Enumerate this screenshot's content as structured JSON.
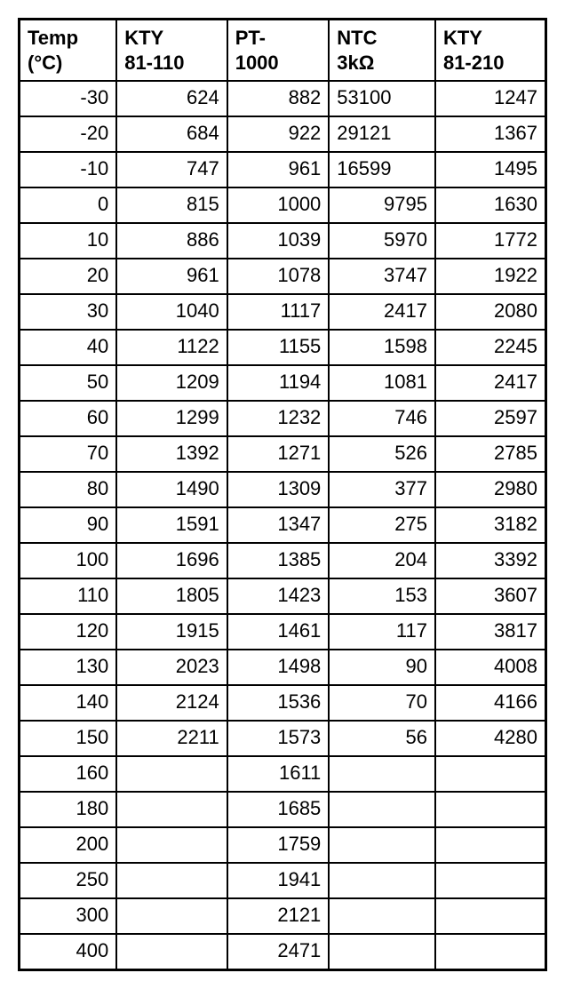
{
  "table": {
    "type": "table",
    "columns": [
      {
        "line1": "Temp",
        "line2": "(°C)"
      },
      {
        "line1": "KTY",
        "line2": "81-110"
      },
      {
        "line1": "PT-",
        "line2": "1000"
      },
      {
        "line1": "NTC",
        "line2": "3kΩ"
      },
      {
        "line1": "KTY",
        "line2": "81-210"
      }
    ],
    "rows": [
      {
        "temp": "-30",
        "kty110": "624",
        "pt1000": "882",
        "ntc": "53100",
        "ntc_align": "left",
        "kty210": "1247"
      },
      {
        "temp": "-20",
        "kty110": "684",
        "pt1000": "922",
        "ntc": "29121",
        "ntc_align": "left",
        "kty210": "1367"
      },
      {
        "temp": "-10",
        "kty110": "747",
        "pt1000": "961",
        "ntc": "16599",
        "ntc_align": "left",
        "kty210": "1495"
      },
      {
        "temp": "0",
        "kty110": "815",
        "pt1000": "1000",
        "ntc": "9795",
        "ntc_align": "right",
        "kty210": "1630"
      },
      {
        "temp": "10",
        "kty110": "886",
        "pt1000": "1039",
        "ntc": "5970",
        "ntc_align": "right",
        "kty210": "1772"
      },
      {
        "temp": "20",
        "kty110": "961",
        "pt1000": "1078",
        "ntc": "3747",
        "ntc_align": "right",
        "kty210": "1922"
      },
      {
        "temp": "30",
        "kty110": "1040",
        "pt1000": "1117",
        "ntc": "2417",
        "ntc_align": "right",
        "kty210": "2080"
      },
      {
        "temp": "40",
        "kty110": "1122",
        "pt1000": "1155",
        "ntc": "1598",
        "ntc_align": "right",
        "kty210": "2245"
      },
      {
        "temp": "50",
        "kty110": "1209",
        "pt1000": "1194",
        "ntc": "1081",
        "ntc_align": "right",
        "kty210": "2417"
      },
      {
        "temp": "60",
        "kty110": "1299",
        "pt1000": "1232",
        "ntc": "746",
        "ntc_align": "right",
        "kty210": "2597"
      },
      {
        "temp": "70",
        "kty110": "1392",
        "pt1000": "1271",
        "ntc": "526",
        "ntc_align": "right",
        "kty210": "2785"
      },
      {
        "temp": "80",
        "kty110": "1490",
        "pt1000": "1309",
        "ntc": "377",
        "ntc_align": "right",
        "kty210": "2980"
      },
      {
        "temp": "90",
        "kty110": "1591",
        "pt1000": "1347",
        "ntc": "275",
        "ntc_align": "right",
        "kty210": "3182"
      },
      {
        "temp": "100",
        "kty110": "1696",
        "pt1000": "1385",
        "ntc": "204",
        "ntc_align": "right",
        "kty210": "3392"
      },
      {
        "temp": "110",
        "kty110": "1805",
        "pt1000": "1423",
        "ntc": "153",
        "ntc_align": "right",
        "kty210": "3607"
      },
      {
        "temp": "120",
        "kty110": "1915",
        "pt1000": "1461",
        "ntc": "117",
        "ntc_align": "right",
        "kty210": "3817"
      },
      {
        "temp": "130",
        "kty110": "2023",
        "pt1000": "1498",
        "ntc": "90",
        "ntc_align": "right",
        "kty210": "4008"
      },
      {
        "temp": "140",
        "kty110": "2124",
        "pt1000": "1536",
        "ntc": "70",
        "ntc_align": "right",
        "kty210": "4166"
      },
      {
        "temp": "150",
        "kty110": "2211",
        "pt1000": "1573",
        "ntc": "56",
        "ntc_align": "right",
        "kty210": "4280"
      },
      {
        "temp": "160",
        "kty110": "",
        "pt1000": "1611",
        "ntc": "",
        "ntc_align": "right",
        "kty210": ""
      },
      {
        "temp": "180",
        "kty110": "",
        "pt1000": "1685",
        "ntc": "",
        "ntc_align": "right",
        "kty210": ""
      },
      {
        "temp": "200",
        "kty110": "",
        "pt1000": "1759",
        "ntc": "",
        "ntc_align": "right",
        "kty210": ""
      },
      {
        "temp": "250",
        "kty110": "",
        "pt1000": "1941",
        "ntc": "",
        "ntc_align": "right",
        "kty210": ""
      },
      {
        "temp": "300",
        "kty110": "",
        "pt1000": "2121",
        "ntc": "",
        "ntc_align": "right",
        "kty210": ""
      },
      {
        "temp": "400",
        "kty110": "",
        "pt1000": "2471",
        "ntc": "",
        "ntc_align": "right",
        "kty210": ""
      }
    ],
    "background_color": "#ffffff",
    "border_color": "#000000",
    "text_color": "#000000",
    "header_fontsize": 22,
    "cell_fontsize": 22
  }
}
